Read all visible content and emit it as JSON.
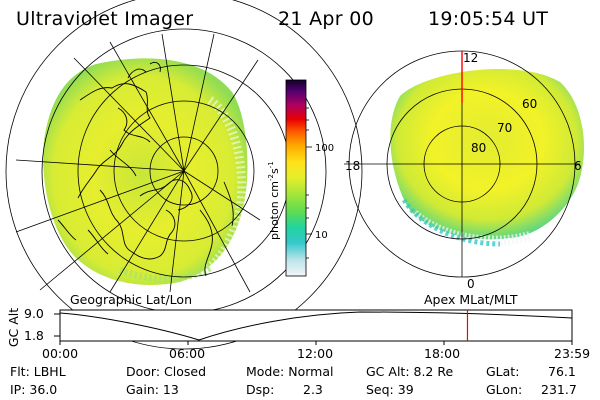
{
  "header": {
    "title": "Ultraviolet Imager",
    "date": "21 Apr 00",
    "time": "19:05:54 UT"
  },
  "colorbar": {
    "label": "photon cm⁻²s⁻¹",
    "label_base": "photon cm",
    "label_sup1": "-2",
    "label_s": "s",
    "label_sup2": "-1",
    "ticks": [
      "100",
      "10"
    ],
    "scale": "log",
    "colors": [
      "#e8f4f8",
      "#a8dde8",
      "#33c8cc",
      "#1fd6a8",
      "#5fdc55",
      "#a8e83c",
      "#e8f02a",
      "#ffe81a",
      "#ffb000",
      "#ff6600",
      "#ee0000",
      "#b8005a",
      "#5c0070",
      "#1a0033"
    ]
  },
  "left_map": {
    "caption": "Geographic Lat/Lon"
  },
  "right_map": {
    "caption": "Apex MLat/MLT",
    "mlt_labels": [
      "12",
      "18",
      "6",
      "0"
    ],
    "lat_labels": [
      "60",
      "70",
      "80"
    ]
  },
  "altitude_plot": {
    "ylabel": "GC Alt",
    "yticks": [
      "9.0",
      "1.8"
    ],
    "xticks": [
      "00:00",
      "06:00",
      "12:00",
      "18:00",
      "23:59"
    ],
    "current_time_marker_hours": 19.1,
    "marker_color": "#ff0000"
  },
  "status": {
    "flt_label": "Flt: LBHL",
    "ip_label": "IP: 36.0",
    "door_label": "Door: Closed",
    "gain_label": "Gain: 13",
    "mode_label": "Mode: Normal",
    "dsp_label": "Dsp:",
    "dsp_value": "2.3",
    "gcalt_label": "GC Alt: 8.2 Re",
    "seq_label": "Seq: 39",
    "glat_label": "GLat:",
    "glat_value": "76.1",
    "glon_label": "GLon:",
    "glon_value": "231.7"
  }
}
